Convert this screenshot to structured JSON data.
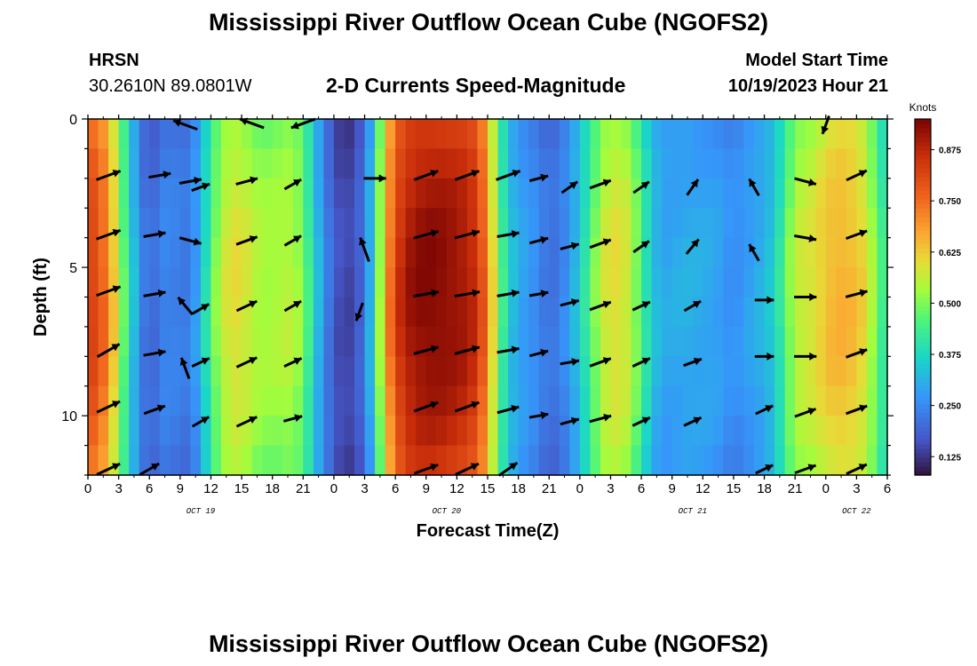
{
  "titles": {
    "main": "Mississippi River Outflow Ocean Cube (NGOFS2)",
    "station_label": "HRSN",
    "station_coords": "30.2610N  89.0801W",
    "subtitle": "2-D Currents Speed-Magnitude",
    "start_label": "Model Start Time",
    "start_value": "10/19/2023 Hour 21",
    "footer": "Mississippi River Outflow Ocean Cube (NGOFS2)"
  },
  "chart_data": {
    "type": "heatmap",
    "xlabel": "Forecast Time(Z)",
    "ylabel": "Depth (ft)",
    "x_hours": [
      0,
      3,
      6,
      9,
      12,
      15,
      18,
      21,
      24,
      27,
      30,
      33,
      36,
      39,
      42,
      45,
      48,
      51,
      54,
      57,
      60,
      63,
      66,
      69,
      72,
      75,
      78
    ],
    "x_tick_labels": [
      "0",
      "3",
      "6",
      "9",
      "12",
      "15",
      "18",
      "21",
      "0",
      "3",
      "6",
      "9",
      "12",
      "15",
      "18",
      "21",
      "0",
      "3",
      "6",
      "9",
      "12",
      "15",
      "18",
      "21",
      "0",
      "3",
      "6"
    ],
    "date_labels": [
      {
        "label": "OCT 19",
        "hour": 11
      },
      {
        "label": "OCT 20",
        "hour": 35
      },
      {
        "label": "OCT 21",
        "hour": 59
      },
      {
        "label": "OCT 22",
        "hour": 75
      }
    ],
    "y_ticks": [
      0,
      5,
      10
    ],
    "ylim": [
      0,
      12
    ],
    "depth_levels_ft": [
      0,
      1,
      2,
      3,
      4,
      5,
      6,
      7,
      8,
      9,
      10,
      11,
      12
    ],
    "colorbar": {
      "label": "Knots",
      "ticks": [
        "0.875",
        "0.750",
        "0.625",
        "0.500",
        "0.375",
        "0.250",
        "0.125"
      ],
      "tick_values": [
        0.875,
        0.75,
        0.625,
        0.5,
        0.375,
        0.25,
        0.125
      ],
      "range": [
        0.08,
        0.95
      ]
    },
    "speed_profile_knots": [
      [
        0,
        0.84
      ],
      [
        1,
        0.8
      ],
      [
        2,
        0.72
      ],
      [
        3,
        0.55
      ],
      [
        4,
        0.4
      ],
      [
        5,
        0.26
      ],
      [
        6,
        0.19
      ],
      [
        7,
        0.23
      ],
      [
        8,
        0.26
      ],
      [
        9,
        0.22
      ],
      [
        10,
        0.24
      ],
      [
        11,
        0.32
      ],
      [
        12,
        0.46
      ],
      [
        13,
        0.56
      ],
      [
        14,
        0.6
      ],
      [
        15,
        0.6
      ],
      [
        16,
        0.56
      ],
      [
        17,
        0.54
      ],
      [
        18,
        0.54
      ],
      [
        19,
        0.55
      ],
      [
        20,
        0.56
      ],
      [
        21,
        0.5
      ],
      [
        22,
        0.38
      ],
      [
        23,
        0.26
      ],
      [
        24,
        0.18
      ],
      [
        25,
        0.14
      ],
      [
        26,
        0.16
      ],
      [
        27,
        0.22
      ],
      [
        28,
        0.4
      ],
      [
        29,
        0.66
      ],
      [
        30,
        0.83
      ],
      [
        31,
        0.9
      ],
      [
        32,
        0.93
      ],
      [
        33,
        0.94
      ],
      [
        34,
        0.94
      ],
      [
        35,
        0.93
      ],
      [
        36,
        0.92
      ],
      [
        37,
        0.9
      ],
      [
        38,
        0.86
      ],
      [
        39,
        0.72
      ],
      [
        40,
        0.5
      ],
      [
        41,
        0.36
      ],
      [
        42,
        0.3
      ],
      [
        43,
        0.28
      ],
      [
        44,
        0.25
      ],
      [
        45,
        0.21
      ],
      [
        46,
        0.23
      ],
      [
        47,
        0.28
      ],
      [
        48,
        0.36
      ],
      [
        49,
        0.45
      ],
      [
        50,
        0.56
      ],
      [
        51,
        0.6
      ],
      [
        52,
        0.6
      ],
      [
        53,
        0.56
      ],
      [
        54,
        0.45
      ],
      [
        55,
        0.35
      ],
      [
        56,
        0.3
      ],
      [
        57,
        0.3
      ],
      [
        58,
        0.31
      ],
      [
        59,
        0.31
      ],
      [
        60,
        0.3
      ],
      [
        61,
        0.3
      ],
      [
        62,
        0.28
      ],
      [
        63,
        0.26
      ],
      [
        64,
        0.28
      ],
      [
        65,
        0.3
      ],
      [
        66,
        0.32
      ],
      [
        67,
        0.36
      ],
      [
        68,
        0.46
      ],
      [
        69,
        0.56
      ],
      [
        70,
        0.58
      ],
      [
        71,
        0.6
      ],
      [
        72,
        0.64
      ],
      [
        73,
        0.66
      ],
      [
        74,
        0.66
      ],
      [
        75,
        0.64
      ],
      [
        76,
        0.6
      ],
      [
        77,
        0.48
      ],
      [
        78,
        0.4
      ]
    ],
    "arrows": [
      {
        "t": 9.5,
        "d": 0.2,
        "dir": 160,
        "mag": 0.8
      },
      {
        "t": 16,
        "d": 0.15,
        "dir": 160,
        "mag": 0.8
      },
      {
        "t": 21,
        "d": 0.15,
        "dir": 200,
        "mag": 0.8
      },
      {
        "t": 72,
        "d": 0.2,
        "dir": 250,
        "mag": 0.6
      },
      {
        "t": 2,
        "d": 1.9,
        "dir": 20,
        "mag": 0.8
      },
      {
        "t": 7,
        "d": 1.9,
        "dir": 10,
        "mag": 0.7
      },
      {
        "t": 10,
        "d": 2.1,
        "dir": 10,
        "mag": 0.7
      },
      {
        "t": 11,
        "d": 2.3,
        "dir": 20,
        "mag": 0.6
      },
      {
        "t": 15.5,
        "d": 2.1,
        "dir": 15,
        "mag": 0.7
      },
      {
        "t": 20,
        "d": 2.2,
        "dir": 30,
        "mag": 0.6
      },
      {
        "t": 28,
        "d": 2.0,
        "dir": 0,
        "mag": 0.7
      },
      {
        "t": 33,
        "d": 1.9,
        "dir": 20,
        "mag": 0.8
      },
      {
        "t": 37,
        "d": 1.9,
        "dir": 20,
        "mag": 0.8
      },
      {
        "t": 41,
        "d": 1.9,
        "dir": 20,
        "mag": 0.8
      },
      {
        "t": 44,
        "d": 2.0,
        "dir": 15,
        "mag": 0.6
      },
      {
        "t": 47,
        "d": 2.3,
        "dir": 35,
        "mag": 0.6
      },
      {
        "t": 50,
        "d": 2.2,
        "dir": 20,
        "mag": 0.7
      },
      {
        "t": 54,
        "d": 2.3,
        "dir": 35,
        "mag": 0.6
      },
      {
        "t": 59,
        "d": 2.3,
        "dir": 55,
        "mag": 0.6
      },
      {
        "t": 65,
        "d": 2.3,
        "dir": 120,
        "mag": 0.6
      },
      {
        "t": 70,
        "d": 2.1,
        "dir": 345,
        "mag": 0.7
      },
      {
        "t": 75,
        "d": 1.9,
        "dir": 25,
        "mag": 0.7
      },
      {
        "t": 2,
        "d": 3.9,
        "dir": 20,
        "mag": 0.8
      },
      {
        "t": 6.5,
        "d": 3.9,
        "dir": 10,
        "mag": 0.7
      },
      {
        "t": 10,
        "d": 4.1,
        "dir": 345,
        "mag": 0.7
      },
      {
        "t": 15.5,
        "d": 4.1,
        "dir": 20,
        "mag": 0.7
      },
      {
        "t": 20,
        "d": 4.1,
        "dir": 30,
        "mag": 0.6
      },
      {
        "t": 27,
        "d": 4.4,
        "dir": 110,
        "mag": 0.8
      },
      {
        "t": 33,
        "d": 3.9,
        "dir": 15,
        "mag": 0.8
      },
      {
        "t": 37,
        "d": 3.9,
        "dir": 15,
        "mag": 0.8
      },
      {
        "t": 41,
        "d": 3.9,
        "dir": 10,
        "mag": 0.7
      },
      {
        "t": 44,
        "d": 4.1,
        "dir": 15,
        "mag": 0.6
      },
      {
        "t": 47,
        "d": 4.3,
        "dir": 15,
        "mag": 0.6
      },
      {
        "t": 50,
        "d": 4.2,
        "dir": 20,
        "mag": 0.7
      },
      {
        "t": 54,
        "d": 4.3,
        "dir": 35,
        "mag": 0.6
      },
      {
        "t": 59,
        "d": 4.3,
        "dir": 50,
        "mag": 0.6
      },
      {
        "t": 65,
        "d": 4.5,
        "dir": 120,
        "mag": 0.6
      },
      {
        "t": 70,
        "d": 4.0,
        "dir": 350,
        "mag": 0.7
      },
      {
        "t": 75,
        "d": 3.9,
        "dir": 20,
        "mag": 0.7
      },
      {
        "t": 2,
        "d": 5.8,
        "dir": 20,
        "mag": 0.8
      },
      {
        "t": 6.5,
        "d": 5.9,
        "dir": 10,
        "mag": 0.7
      },
      {
        "t": 9.5,
        "d": 6.3,
        "dir": 130,
        "mag": 0.7
      },
      {
        "t": 11,
        "d": 6.4,
        "dir": 30,
        "mag": 0.6
      },
      {
        "t": 15.5,
        "d": 6.3,
        "dir": 25,
        "mag": 0.7
      },
      {
        "t": 20,
        "d": 6.3,
        "dir": 30,
        "mag": 0.6
      },
      {
        "t": 26.5,
        "d": 6.5,
        "dir": 250,
        "mag": 0.6
      },
      {
        "t": 33,
        "d": 5.9,
        "dir": 10,
        "mag": 0.8
      },
      {
        "t": 37,
        "d": 5.9,
        "dir": 10,
        "mag": 0.8
      },
      {
        "t": 41,
        "d": 5.9,
        "dir": 10,
        "mag": 0.7
      },
      {
        "t": 44,
        "d": 5.9,
        "dir": 10,
        "mag": 0.6
      },
      {
        "t": 47,
        "d": 6.2,
        "dir": 15,
        "mag": 0.6
      },
      {
        "t": 50,
        "d": 6.3,
        "dir": 20,
        "mag": 0.7
      },
      {
        "t": 54,
        "d": 6.3,
        "dir": 25,
        "mag": 0.6
      },
      {
        "t": 59,
        "d": 6.3,
        "dir": 30,
        "mag": 0.6
      },
      {
        "t": 66,
        "d": 6.1,
        "dir": 0,
        "mag": 0.6
      },
      {
        "t": 70,
        "d": 6.0,
        "dir": 0,
        "mag": 0.7
      },
      {
        "t": 75,
        "d": 5.9,
        "dir": 15,
        "mag": 0.7
      },
      {
        "t": 2,
        "d": 7.8,
        "dir": 30,
        "mag": 0.8
      },
      {
        "t": 6.5,
        "d": 7.9,
        "dir": 10,
        "mag": 0.7
      },
      {
        "t": 9.5,
        "d": 8.4,
        "dir": 110,
        "mag": 0.7
      },
      {
        "t": 11,
        "d": 8.2,
        "dir": 25,
        "mag": 0.6
      },
      {
        "t": 15.5,
        "d": 8.2,
        "dir": 25,
        "mag": 0.7
      },
      {
        "t": 20,
        "d": 8.2,
        "dir": 25,
        "mag": 0.6
      },
      {
        "t": 33,
        "d": 7.8,
        "dir": 15,
        "mag": 0.8
      },
      {
        "t": 37,
        "d": 7.8,
        "dir": 15,
        "mag": 0.8
      },
      {
        "t": 41,
        "d": 7.8,
        "dir": 10,
        "mag": 0.7
      },
      {
        "t": 44,
        "d": 7.9,
        "dir": 15,
        "mag": 0.6
      },
      {
        "t": 47,
        "d": 8.2,
        "dir": 10,
        "mag": 0.6
      },
      {
        "t": 50,
        "d": 8.2,
        "dir": 20,
        "mag": 0.7
      },
      {
        "t": 54,
        "d": 8.2,
        "dir": 25,
        "mag": 0.6
      },
      {
        "t": 59,
        "d": 8.2,
        "dir": 20,
        "mag": 0.6
      },
      {
        "t": 66,
        "d": 8.0,
        "dir": 0,
        "mag": 0.6
      },
      {
        "t": 70,
        "d": 8.0,
        "dir": 0,
        "mag": 0.7
      },
      {
        "t": 75,
        "d": 7.9,
        "dir": 20,
        "mag": 0.7
      },
      {
        "t": 2,
        "d": 9.7,
        "dir": 25,
        "mag": 0.8
      },
      {
        "t": 6.5,
        "d": 9.8,
        "dir": 20,
        "mag": 0.7
      },
      {
        "t": 11,
        "d": 10.2,
        "dir": 30,
        "mag": 0.6
      },
      {
        "t": 15.5,
        "d": 10.2,
        "dir": 25,
        "mag": 0.7
      },
      {
        "t": 20,
        "d": 10.1,
        "dir": 15,
        "mag": 0.6
      },
      {
        "t": 33,
        "d": 9.7,
        "dir": 20,
        "mag": 0.8
      },
      {
        "t": 37,
        "d": 9.7,
        "dir": 20,
        "mag": 0.8
      },
      {
        "t": 41,
        "d": 9.8,
        "dir": 15,
        "mag": 0.7
      },
      {
        "t": 44,
        "d": 10.0,
        "dir": 10,
        "mag": 0.6
      },
      {
        "t": 47,
        "d": 10.2,
        "dir": 15,
        "mag": 0.6
      },
      {
        "t": 50,
        "d": 10.1,
        "dir": 15,
        "mag": 0.7
      },
      {
        "t": 54,
        "d": 10.2,
        "dir": 25,
        "mag": 0.6
      },
      {
        "t": 59,
        "d": 10.2,
        "dir": 25,
        "mag": 0.6
      },
      {
        "t": 66,
        "d": 9.8,
        "dir": 25,
        "mag": 0.6
      },
      {
        "t": 70,
        "d": 9.9,
        "dir": 20,
        "mag": 0.7
      },
      {
        "t": 75,
        "d": 9.8,
        "dir": 20,
        "mag": 0.7
      },
      {
        "t": 2,
        "d": 11.8,
        "dir": 25,
        "mag": 0.8
      },
      {
        "t": 6,
        "d": 11.8,
        "dir": 30,
        "mag": 0.7
      },
      {
        "t": 33,
        "d": 11.8,
        "dir": 20,
        "mag": 0.8
      },
      {
        "t": 37,
        "d": 11.8,
        "dir": 25,
        "mag": 0.8
      },
      {
        "t": 41,
        "d": 11.8,
        "dir": 35,
        "mag": 0.7
      },
      {
        "t": 66,
        "d": 11.8,
        "dir": 25,
        "mag": 0.6
      },
      {
        "t": 70,
        "d": 11.8,
        "dir": 20,
        "mag": 0.7
      },
      {
        "t": 75,
        "d": 11.8,
        "dir": 25,
        "mag": 0.7
      }
    ]
  }
}
